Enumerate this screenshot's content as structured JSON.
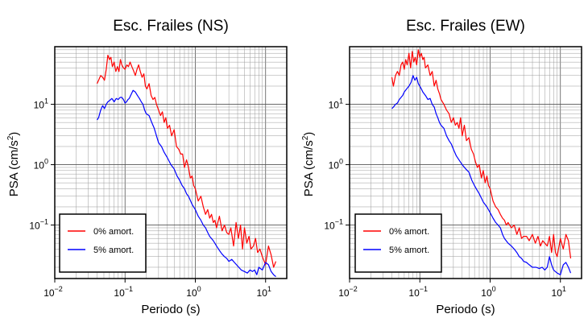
{
  "chart_data": [
    {
      "type": "line",
      "title": "Esc. Frailes (NS)",
      "xlabel": "Periodo (s)",
      "ylabel": "PSA (cm/s",
      "ylabel_sup": "2",
      "ylabel_close": ")",
      "x_scale": "log",
      "y_scale": "log",
      "xlim": [
        0.01,
        20
      ],
      "ylim": [
        0.013,
        90
      ],
      "grid": true,
      "legend_placement": "bottom-left",
      "x_ticks": [
        {
          "base": "10",
          "exp": "−2",
          "value": 0.01
        },
        {
          "base": "10",
          "exp": "−1",
          "value": 0.1
        },
        {
          "base": "10",
          "exp": "0",
          "value": 1
        },
        {
          "base": "10",
          "exp": "1",
          "value": 10
        }
      ],
      "y_ticks": [
        {
          "base": "10",
          "exp": "−1",
          "value": 0.1
        },
        {
          "base": "10",
          "exp": "0",
          "value": 1
        },
        {
          "base": "10",
          "exp": "1",
          "value": 10
        }
      ],
      "series": [
        {
          "name": "0% amort.",
          "color": "#ff0000",
          "x": [
            0.04,
            0.042,
            0.045,
            0.048,
            0.051,
            0.054,
            0.057,
            0.06,
            0.063,
            0.066,
            0.07,
            0.074,
            0.078,
            0.082,
            0.086,
            0.09,
            0.095,
            0.1,
            0.106,
            0.112,
            0.118,
            0.125,
            0.132,
            0.14,
            0.148,
            0.156,
            0.165,
            0.175,
            0.185,
            0.195,
            0.205,
            0.22,
            0.235,
            0.25,
            0.265,
            0.28,
            0.3,
            0.32,
            0.34,
            0.36,
            0.38,
            0.4,
            0.43,
            0.46,
            0.5,
            0.54,
            0.58,
            0.62,
            0.66,
            0.7,
            0.75,
            0.8,
            0.85,
            0.9,
            0.95,
            1.0,
            1.1,
            1.2,
            1.3,
            1.4,
            1.5,
            1.6,
            1.7,
            1.8,
            1.9,
            2.0,
            2.2,
            2.4,
            2.6,
            2.8,
            3.0,
            3.2,
            3.5,
            3.8,
            4.1,
            4.4,
            4.7,
            5.0,
            5.4,
            5.8,
            6.2,
            6.7,
            7.2,
            7.7,
            8.3,
            9.0,
            10.0,
            11.0,
            12.0,
            13.0,
            14.0
          ],
          "values": [
            22,
            25,
            30,
            28,
            25,
            38,
            65,
            55,
            60,
            42,
            50,
            35,
            42,
            35,
            55,
            45,
            40,
            38,
            45,
            42,
            50,
            42,
            36,
            30,
            38,
            45,
            35,
            28,
            32,
            20,
            18,
            22,
            14,
            12,
            13,
            10,
            8,
            6.5,
            7.5,
            5,
            6,
            4,
            4.5,
            3,
            3.8,
            2,
            1.8,
            1.5,
            1.5,
            0.9,
            1.2,
            0.9,
            0.6,
            0.65,
            0.45,
            0.4,
            0.25,
            0.3,
            0.2,
            0.15,
            0.18,
            0.13,
            0.15,
            0.11,
            0.12,
            0.09,
            0.14,
            0.08,
            0.1,
            0.075,
            0.07,
            0.09,
            0.045,
            0.11,
            0.06,
            0.1,
            0.04,
            0.09,
            0.05,
            0.065,
            0.04,
            0.045,
            0.06,
            0.035,
            0.04,
            0.03,
            0.022,
            0.045,
            0.032,
            0.02,
            0.025
          ]
        },
        {
          "name": "5% amort.",
          "color": "#0000ff",
          "x": [
            0.04,
            0.042,
            0.045,
            0.048,
            0.051,
            0.054,
            0.057,
            0.06,
            0.065,
            0.07,
            0.075,
            0.08,
            0.085,
            0.09,
            0.095,
            0.1,
            0.105,
            0.11,
            0.115,
            0.12,
            0.13,
            0.14,
            0.15,
            0.16,
            0.17,
            0.18,
            0.19,
            0.2,
            0.22,
            0.24,
            0.26,
            0.28,
            0.3,
            0.33,
            0.36,
            0.4,
            0.45,
            0.5,
            0.55,
            0.6,
            0.65,
            0.7,
            0.75,
            0.8,
            0.9,
            1.0,
            1.1,
            1.2,
            1.3,
            1.4,
            1.5,
            1.6,
            1.8,
            2.0,
            2.2,
            2.4,
            2.6,
            2.8,
            3.0,
            3.3,
            3.6,
            4.0,
            4.5,
            5.0,
            5.5,
            6.0,
            6.5,
            7.0,
            7.5,
            8.0,
            9.0,
            10.0,
            11.0,
            12.0,
            13.0,
            14.0
          ],
          "values": [
            5.5,
            6,
            8,
            9.5,
            8.5,
            10,
            11,
            11.5,
            12.5,
            11,
            12.5,
            12,
            13,
            13,
            12,
            10.5,
            11,
            12,
            12.5,
            14,
            17,
            16,
            14,
            12.5,
            11,
            10,
            8,
            7,
            6.5,
            5,
            4,
            3,
            2.3,
            2,
            1.6,
            1.3,
            1.0,
            0.85,
            0.65,
            0.55,
            0.45,
            0.4,
            0.33,
            0.3,
            0.22,
            0.18,
            0.14,
            0.12,
            0.1,
            0.09,
            0.075,
            0.065,
            0.055,
            0.045,
            0.038,
            0.033,
            0.03,
            0.028,
            0.025,
            0.027,
            0.024,
            0.021,
            0.018,
            0.017,
            0.016,
            0.018,
            0.017,
            0.018,
            0.015,
            0.02,
            0.018,
            0.024,
            0.022,
            0.017,
            0.015,
            0.014
          ]
        }
      ]
    },
    {
      "type": "line",
      "title": "Esc. Frailes (EW)",
      "xlabel": "Periodo (s)",
      "ylabel": "PSA (cm/s",
      "ylabel_sup": "2",
      "ylabel_close": ")",
      "x_scale": "log",
      "y_scale": "log",
      "xlim": [
        0.01,
        20
      ],
      "ylim": [
        0.013,
        90
      ],
      "grid": true,
      "legend_placement": "bottom-left",
      "x_ticks": [
        {
          "base": "10",
          "exp": "−2",
          "value": 0.01
        },
        {
          "base": "10",
          "exp": "−1",
          "value": 0.1
        },
        {
          "base": "10",
          "exp": "0",
          "value": 1
        },
        {
          "base": "10",
          "exp": "1",
          "value": 10
        }
      ],
      "y_ticks": [
        {
          "base": "10",
          "exp": "−1",
          "value": 0.1
        },
        {
          "base": "10",
          "exp": "0",
          "value": 1
        },
        {
          "base": "10",
          "exp": "1",
          "value": 10
        }
      ],
      "series": [
        {
          "name": "0% amort.",
          "color": "#ff0000",
          "x": [
            0.04,
            0.042,
            0.045,
            0.048,
            0.051,
            0.054,
            0.057,
            0.06,
            0.063,
            0.066,
            0.07,
            0.074,
            0.078,
            0.082,
            0.086,
            0.09,
            0.095,
            0.1,
            0.105,
            0.11,
            0.115,
            0.12,
            0.13,
            0.14,
            0.15,
            0.16,
            0.17,
            0.18,
            0.19,
            0.2,
            0.22,
            0.24,
            0.26,
            0.28,
            0.3,
            0.32,
            0.34,
            0.36,
            0.38,
            0.4,
            0.43,
            0.46,
            0.5,
            0.54,
            0.58,
            0.62,
            0.66,
            0.7,
            0.75,
            0.8,
            0.85,
            0.9,
            0.95,
            1.0,
            1.1,
            1.2,
            1.3,
            1.4,
            1.5,
            1.6,
            1.7,
            1.8,
            2.0,
            2.2,
            2.4,
            2.6,
            2.8,
            3.0,
            3.3,
            3.6,
            4.0,
            4.4,
            4.8,
            5.2,
            5.6,
            6.0,
            6.5,
            7.0,
            7.5,
            8.0,
            8.5,
            9.0,
            10.0,
            11.0,
            12.0,
            13.0,
            14.0
          ],
          "values": [
            28,
            20,
            30,
            35,
            30,
            45,
            50,
            38,
            55,
            45,
            70,
            40,
            75,
            50,
            60,
            45,
            80,
            60,
            70,
            55,
            60,
            40,
            45,
            30,
            35,
            20,
            25,
            18,
            15,
            12,
            10,
            8,
            7,
            5,
            6,
            4.5,
            5,
            4,
            6,
            3,
            4.5,
            2.5,
            2.8,
            1.8,
            1.5,
            1.1,
            0.9,
            1.0,
            0.6,
            0.8,
            0.5,
            0.65,
            0.45,
            0.4,
            0.25,
            0.2,
            0.18,
            0.15,
            0.13,
            0.12,
            0.1,
            0.11,
            0.09,
            0.1,
            0.07,
            0.09,
            0.06,
            0.065,
            0.065,
            0.055,
            0.07,
            0.05,
            0.065,
            0.045,
            0.055,
            0.05,
            0.045,
            0.065,
            0.035,
            0.07,
            0.035,
            0.03,
            0.06,
            0.04,
            0.07,
            0.055,
            0.028
          ]
        },
        {
          "name": "5% amort.",
          "color": "#0000ff",
          "x": [
            0.04,
            0.042,
            0.045,
            0.048,
            0.051,
            0.054,
            0.057,
            0.06,
            0.065,
            0.07,
            0.075,
            0.08,
            0.085,
            0.09,
            0.095,
            0.1,
            0.105,
            0.11,
            0.12,
            0.13,
            0.14,
            0.15,
            0.16,
            0.17,
            0.18,
            0.19,
            0.2,
            0.22,
            0.24,
            0.26,
            0.28,
            0.3,
            0.33,
            0.36,
            0.4,
            0.45,
            0.5,
            0.55,
            0.6,
            0.65,
            0.7,
            0.75,
            0.8,
            0.9,
            1.0,
            1.1,
            1.2,
            1.3,
            1.4,
            1.5,
            1.6,
            1.8,
            2.0,
            2.2,
            2.4,
            2.6,
            2.8,
            3.0,
            3.3,
            3.6,
            4.0,
            4.5,
            5.0,
            5.5,
            6.0,
            6.5,
            7.0,
            7.5,
            8.0,
            9.0,
            10.0,
            11.0,
            12.0,
            13.0,
            14.0
          ],
          "values": [
            8.5,
            9,
            10,
            10.5,
            12,
            13,
            14,
            16,
            18,
            20,
            23,
            30,
            25,
            28,
            22,
            20,
            18,
            16,
            14,
            12,
            12.5,
            10,
            9,
            7,
            6,
            5,
            4.5,
            4,
            3,
            2.5,
            2.2,
            1.8,
            1.4,
            1.2,
            1.0,
            0.85,
            0.75,
            0.55,
            0.45,
            0.38,
            0.33,
            0.28,
            0.24,
            0.2,
            0.16,
            0.13,
            0.11,
            0.1,
            0.09,
            0.07,
            0.06,
            0.05,
            0.045,
            0.04,
            0.035,
            0.03,
            0.028,
            0.025,
            0.024,
            0.022,
            0.02,
            0.02,
            0.019,
            0.02,
            0.018,
            0.02,
            0.03,
            0.022,
            0.018,
            0.016,
            0.015,
            0.022,
            0.024,
            0.02,
            0.016
          ]
        }
      ]
    }
  ]
}
